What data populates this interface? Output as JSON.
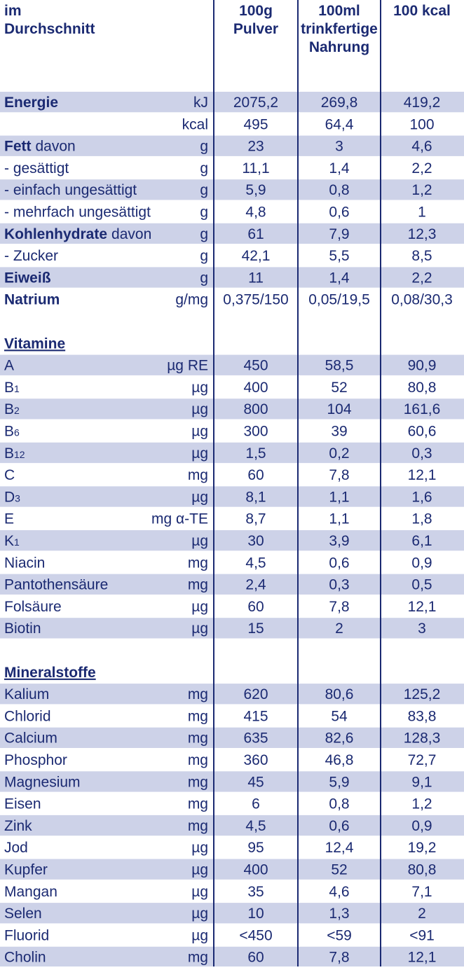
{
  "header": {
    "label": [
      "im",
      "Durchschnitt"
    ],
    "columns": [
      [
        "100g",
        "Pulver"
      ],
      [
        "100ml",
        "trinkfertige",
        "Nahrung"
      ],
      [
        "100 kcal"
      ]
    ]
  },
  "sections": [
    {
      "rows": [
        {
          "label": "Energie",
          "bold": true,
          "unit": "kJ",
          "values": [
            "2075,2",
            "269,8",
            "419,2"
          ]
        },
        {
          "unit": "kcal",
          "values": [
            "495",
            "64,4",
            "100"
          ]
        },
        {
          "label": "Fett",
          "bold": true,
          "suffix": "davon",
          "unit": "g",
          "values": [
            "23",
            "3",
            "4,6"
          ]
        },
        {
          "label": "- gesättigt",
          "unit": "g",
          "values": [
            "11,1",
            "1,4",
            "2,2"
          ]
        },
        {
          "label": "- einfach ungesättigt",
          "unit": "g",
          "values": [
            "5,9",
            "0,8",
            "1,2"
          ]
        },
        {
          "label": "- mehrfach ungesättigt",
          "unit": "g",
          "values": [
            "4,8",
            "0,6",
            "1"
          ]
        },
        {
          "label": "Kohlenhydrate",
          "bold": true,
          "suffix": "davon",
          "unit": "g",
          "values": [
            "61",
            "7,9",
            "12,3"
          ]
        },
        {
          "label": "- Zucker",
          "unit": "g",
          "values": [
            "42,1",
            "5,5",
            "8,5"
          ]
        },
        {
          "label": "Eiweiß",
          "bold": true,
          "unit": "g",
          "values": [
            "11",
            "1,4",
            "2,2"
          ]
        },
        {
          "label": "Natrium",
          "bold": true,
          "unit": "g/mg",
          "values": [
            "0,375/150",
            "0,05/19,5",
            "0,08/30,3"
          ]
        }
      ]
    },
    {
      "title": "Vitamine",
      "rows": [
        {
          "label": "A",
          "unit": "µg RE",
          "values": [
            "450",
            "58,5",
            "90,9"
          ]
        },
        {
          "label": "B",
          "sub": "1",
          "unit": "µg",
          "values": [
            "400",
            "52",
            "80,8"
          ]
        },
        {
          "label": "B",
          "sub": "2",
          "unit": "µg",
          "values": [
            "800",
            "104",
            "161,6"
          ]
        },
        {
          "label": "B",
          "sub": "6",
          "unit": "µg",
          "values": [
            "300",
            "39",
            "60,6"
          ]
        },
        {
          "label": "B",
          "sub": "12",
          "unit": "µg",
          "values": [
            "1,5",
            "0,2",
            "0,3"
          ]
        },
        {
          "label": "C",
          "unit": "mg",
          "values": [
            "60",
            "7,8",
            "12,1"
          ]
        },
        {
          "label": "D",
          "sub": "3",
          "unit": "µg",
          "values": [
            "8,1",
            "1,1",
            "1,6"
          ]
        },
        {
          "label": "E",
          "unit": "mg α-TE",
          "values": [
            "8,7",
            "1,1",
            "1,8"
          ]
        },
        {
          "label": "K",
          "sub": "1",
          "unit": "µg",
          "values": [
            "30",
            "3,9",
            "6,1"
          ]
        },
        {
          "label": "Niacin",
          "unit": "mg",
          "values": [
            "4,5",
            "0,6",
            "0,9"
          ]
        },
        {
          "label": "Pantothensäure",
          "unit": "mg",
          "values": [
            "2,4",
            "0,3",
            "0,5"
          ]
        },
        {
          "label": "Folsäure",
          "unit": "µg",
          "values": [
            "60",
            "7,8",
            "12,1"
          ]
        },
        {
          "label": "Biotin",
          "unit": "µg",
          "values": [
            "15",
            "2",
            "3"
          ]
        }
      ]
    },
    {
      "title": "Mineralstoffe",
      "rows": [
        {
          "label": "Kalium",
          "unit": "mg",
          "values": [
            "620",
            "80,6",
            "125,2"
          ]
        },
        {
          "label": "Chlorid",
          "unit": "mg",
          "values": [
            "415",
            "54",
            "83,8"
          ]
        },
        {
          "label": "Calcium",
          "unit": "mg",
          "values": [
            "635",
            "82,6",
            "128,3"
          ]
        },
        {
          "label": "Phosphor",
          "unit": "mg",
          "values": [
            "360",
            "46,8",
            "72,7"
          ]
        },
        {
          "label": "Magnesium",
          "unit": "mg",
          "values": [
            "45",
            "5,9",
            "9,1"
          ]
        },
        {
          "label": "Eisen",
          "unit": "mg",
          "values": [
            "6",
            "0,8",
            "1,2"
          ]
        },
        {
          "label": "Zink",
          "unit": "mg",
          "values": [
            "4,5",
            "0,6",
            "0,9"
          ]
        },
        {
          "label": "Jod",
          "unit": "µg",
          "values": [
            "95",
            "12,4",
            "19,2"
          ]
        },
        {
          "label": "Kupfer",
          "unit": "µg",
          "values": [
            "400",
            "52",
            "80,8"
          ]
        },
        {
          "label": "Mangan",
          "unit": "µg",
          "values": [
            "35",
            "4,6",
            "7,1"
          ]
        },
        {
          "label": "Selen",
          "unit": "µg",
          "values": [
            "10",
            "1,3",
            "2"
          ]
        },
        {
          "label": "Fluorid",
          "unit": "µg",
          "values": [
            "<450",
            "<59",
            "<91"
          ]
        },
        {
          "label": "Cholin",
          "unit": "mg",
          "values": [
            "60",
            "7,8",
            "12,1"
          ]
        }
      ]
    }
  ]
}
